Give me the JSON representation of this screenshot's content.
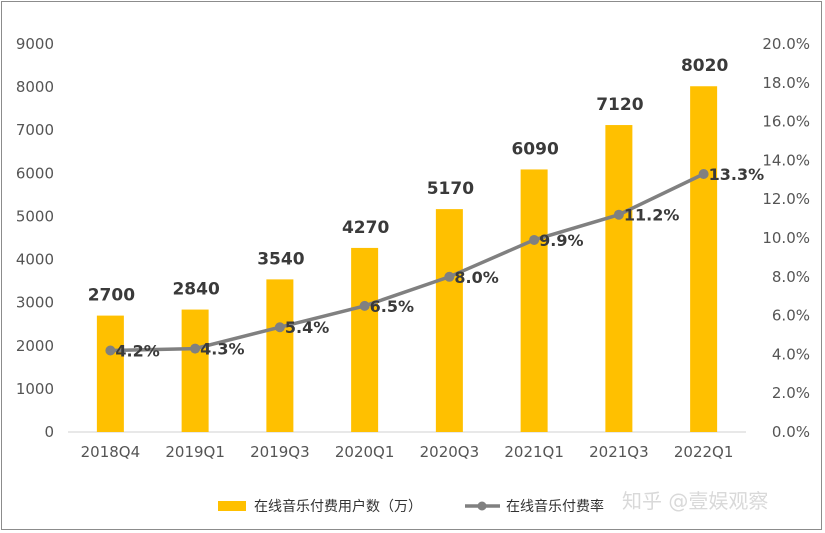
{
  "chart_data": {
    "type": "bar",
    "categories": [
      "2018Q4",
      "2019Q1",
      "2019Q3",
      "2020Q1",
      "2020Q3",
      "2021Q1",
      "2021Q3",
      "2022Q1"
    ],
    "series": [
      {
        "name": "在线音乐付费用户数（万）",
        "type": "bar",
        "axis": "left",
        "color": "#FFC000",
        "values": [
          2700,
          2840,
          3540,
          4270,
          5170,
          6090,
          7120,
          8020
        ],
        "labels": [
          "2700",
          "2840",
          "3540",
          "4270",
          "5170",
          "6090",
          "7120",
          "8020"
        ]
      },
      {
        "name": "在线音乐付费率",
        "type": "line",
        "axis": "right",
        "color": "#808080",
        "values": [
          4.2,
          4.3,
          5.4,
          6.5,
          8.0,
          9.9,
          11.2,
          13.3
        ],
        "labels": [
          "4.2%",
          "4.3%",
          "5.4%",
          "6.5%",
          "8.0%",
          "9.9%",
          "11.2%",
          "13.3%"
        ]
      }
    ],
    "y_left": {
      "min": 0,
      "max": 9000,
      "step": 1000,
      "ticks": [
        "0",
        "1000",
        "2000",
        "3000",
        "4000",
        "5000",
        "6000",
        "7000",
        "8000",
        "9000"
      ]
    },
    "y_right": {
      "min": 0,
      "max": 20,
      "step": 2,
      "ticks": [
        "0.0%",
        "2.0%",
        "4.0%",
        "6.0%",
        "8.0%",
        "10.0%",
        "12.0%",
        "14.0%",
        "16.0%",
        "18.0%",
        "20.0%"
      ]
    },
    "grid": false,
    "legend_position": "bottom"
  },
  "watermark": "知乎 @壹娱观察"
}
